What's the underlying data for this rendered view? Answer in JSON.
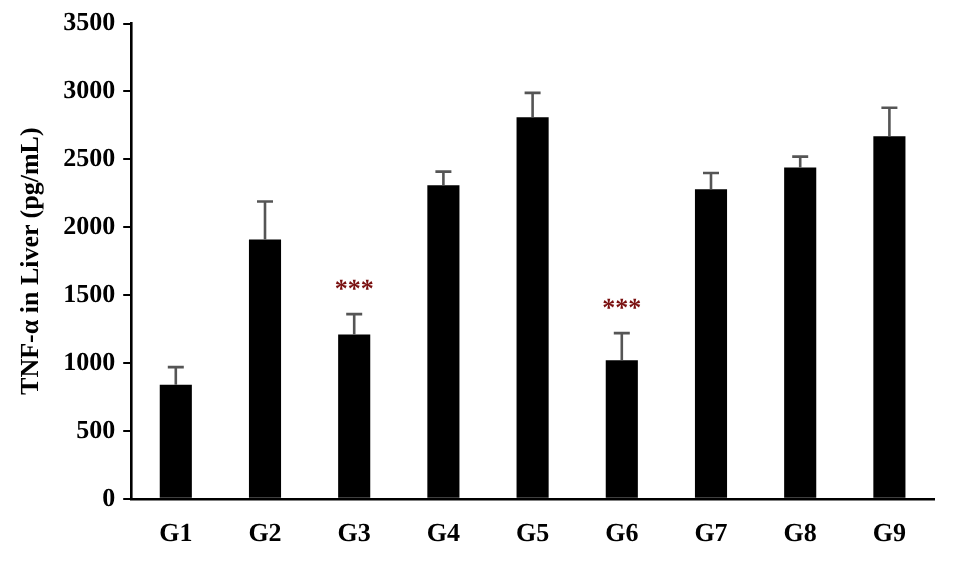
{
  "chart_data": {
    "type": "bar",
    "ylabel": "TNF-α in Liver (pg/mL)",
    "categories": [
      "G1",
      "G2",
      "G3",
      "G4",
      "G5",
      "G6",
      "G7",
      "G8",
      "G9"
    ],
    "values": [
      840,
      1910,
      1210,
      2310,
      2810,
      1020,
      2280,
      2440,
      2670
    ],
    "errors": [
      [
        840,
        970
      ],
      [
        1910,
        2190
      ],
      [
        1210,
        1360
      ],
      [
        2310,
        2410
      ],
      [
        2810,
        2990
      ],
      [
        1020,
        1220
      ],
      [
        2280,
        2400
      ],
      [
        2440,
        2520
      ],
      [
        2670,
        2880
      ]
    ],
    "color": "#000000",
    "ylim": [
      0,
      3500
    ],
    "yticks": [
      0,
      500,
      1000,
      1500,
      2000,
      2500,
      3000,
      3500
    ],
    "grid": false,
    "legend": false,
    "annotations": [
      "***",
      "***"
    ]
  }
}
